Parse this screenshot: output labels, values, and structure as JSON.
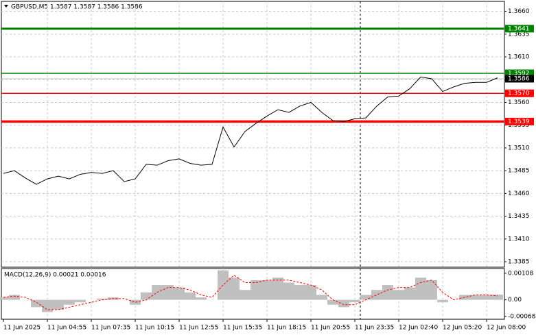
{
  "chart_data": [
    {
      "type": "line",
      "title": "GBPUSD,M5  1.3587 1.3587 1.3586 1.3586",
      "categories": [
        "11 Jun 2025",
        null,
        null,
        null,
        "11 Jun 04:55",
        null,
        null,
        null,
        "11 Jun 07:35",
        null,
        null,
        null,
        "11 Jun 10:15",
        null,
        null,
        null,
        "11 Jun 12:55",
        null,
        null,
        null,
        "11 Jun 15:35",
        null,
        null,
        null,
        "11 Jun 18:15",
        null,
        null,
        null,
        "11 Jun 20:55",
        null,
        null,
        null,
        "11 Jun 23:35",
        null,
        null,
        null,
        "12 Jun 02:40",
        null,
        null,
        null,
        "12 Jun 05:20",
        null,
        null,
        null,
        "12 Jun 08:00",
        null
      ],
      "values": [
        1.3482,
        1.3485,
        1.3477,
        1.347,
        1.3476,
        1.3479,
        1.3476,
        1.3481,
        1.3483,
        1.3482,
        1.3485,
        1.3473,
        1.3476,
        1.3492,
        1.3491,
        1.3496,
        1.3498,
        1.3493,
        1.3491,
        1.3492,
        1.3533,
        1.3511,
        1.3528,
        1.3537,
        1.3545,
        1.3552,
        1.3549,
        1.3556,
        1.356,
        1.3549,
        1.354,
        1.3539,
        1.3542,
        1.3543,
        1.3556,
        1.3566,
        1.3567,
        1.3575,
        1.3588,
        1.3586,
        1.3572,
        1.3577,
        1.3581,
        1.3582,
        1.3582,
        1.3587
      ],
      "color": "#000000",
      "ylim": [
        1.3379,
        1.3671
      ],
      "yticks": [
        {
          "value": 1.366,
          "label": "1.3660"
        },
        1.3635,
        {
          "value": 1.361,
          "label": "1.3610"
        },
        1.3585,
        {
          "value": 1.356,
          "label": "1.3560"
        },
        1.3535,
        {
          "value": 1.351,
          "label": "1.3510"
        },
        1.3485,
        {
          "value": 1.346,
          "label": "1.3460"
        },
        1.3435,
        {
          "value": 1.341,
          "label": "1.3410"
        },
        1.3385
      ],
      "grid": true,
      "levels": {
        "values": [
          1.3641,
          1.3592,
          1.357,
          1.3539
        ],
        "value_labels": [
          "1.3641",
          "1.3592",
          "1.3570",
          "1.3539"
        ],
        "colors": [
          "#008000",
          "#008000",
          "#ff0000",
          "#ff0000"
        ]
      },
      "last_price": 1.3586
    },
    {
      "type": "macd",
      "title": "MACD(12,26,9) 0.00021 0.00016",
      "series": [
        {
          "color": "#c0c0c0",
          "values": [
            0.0001,
            0.0002,
            0.0,
            -0.0003,
            -0.0005,
            -0.0004,
            -0.0002,
            -0.0001,
            0.0,
            5e-05,
            0.0001,
            0.0,
            -0.0002,
            0.0003,
            0.0006,
            0.0006,
            0.0005,
            0.0003,
            0.0001,
            0.0,
            0.0012,
            0.0009,
            0.0004,
            0.0008,
            0.0008,
            0.0009,
            0.0007,
            0.0006,
            0.0006,
            0.0002,
            -0.0002,
            -0.0003,
            -0.0001,
            0.0002,
            0.0004,
            0.0006,
            0.0004,
            0.0005,
            0.0009,
            0.0008,
            -0.0001,
            0.0,
            0.0002,
            0.0002,
            0.0002,
            0.00021
          ]
        },
        {
          "color": "#ff0000",
          "values": [
            0.0001,
            0.00015,
            0.0001,
            -0.0001,
            -0.0004,
            -0.0004,
            -0.0003,
            -0.0002,
            -0.0001,
            0.0,
            5e-05,
            5e-05,
            -0.0001,
            0.0,
            0.0003,
            0.0005,
            0.0005,
            0.0004,
            0.0002,
            0.0001,
            0.0006,
            0.001,
            0.0007,
            0.0007,
            0.0008,
            0.0008,
            0.0008,
            0.0007,
            0.0006,
            0.0004,
            0.0,
            -0.0002,
            -0.0002,
            0.0,
            0.0002,
            0.0004,
            0.0005,
            0.0005,
            0.0007,
            0.0008,
            0.0003,
            0.0,
            0.0001,
            0.0002,
            0.0002,
            0.00016
          ]
        }
      ],
      "ylim": [
        -0.00079,
        0.00127
      ],
      "yticks": [
        0.00108,
        {
          "value": 0,
          "label": "0.00"
        },
        -0.00068
      ]
    }
  ]
}
